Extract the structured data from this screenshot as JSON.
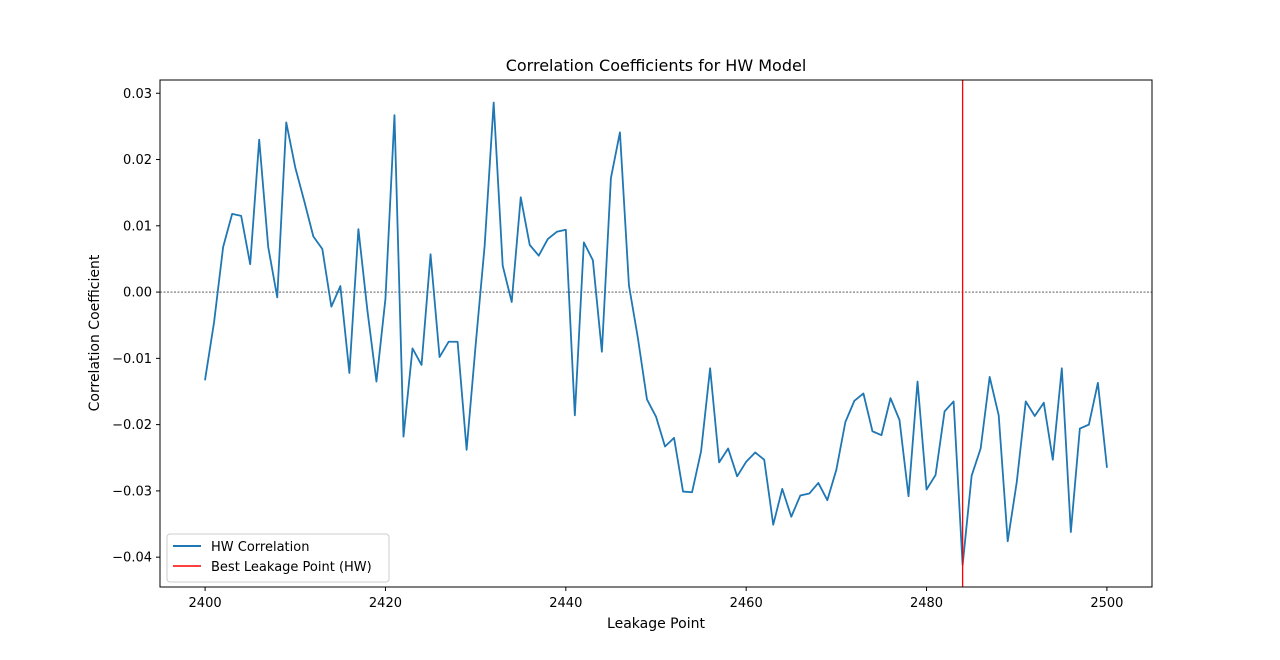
{
  "chart_data": {
    "type": "line",
    "title": "Correlation Coefficients for HW Model",
    "xlabel": "Leakage Point",
    "ylabel": "Correlation Coefficient",
    "xlim": [
      2395,
      2505
    ],
    "ylim": [
      -0.0445,
      0.032
    ],
    "xticks": [
      2400,
      2420,
      2440,
      2460,
      2480,
      2500
    ],
    "xtick_labels": [
      "2400",
      "2420",
      "2440",
      "2460",
      "2480",
      "2500"
    ],
    "yticks": [
      -0.04,
      -0.03,
      -0.02,
      -0.01,
      0.0,
      0.01,
      0.02,
      0.03
    ],
    "ytick_labels": [
      "−0.04",
      "−0.03",
      "−0.02",
      "−0.01",
      "0.00",
      "0.01",
      "0.02",
      "0.03"
    ],
    "grid": false,
    "legend_position": "lower-left",
    "zero_line": 0,
    "best_point": 2484,
    "colors": {
      "series": "#1f77b4",
      "best": "#ff0000",
      "zero": "#000000"
    },
    "series": [
      {
        "name": "HW Correlation",
        "x_start": 2400,
        "x_step": 1,
        "values": [
          -0.0132,
          -0.0045,
          0.0068,
          0.0118,
          0.0115,
          0.0042,
          0.023,
          0.0068,
          -0.0008,
          0.0256,
          0.0188,
          0.0137,
          0.0084,
          0.0065,
          -0.0022,
          0.0009,
          -0.0122,
          0.0095,
          -0.0028,
          -0.0135,
          -0.001,
          0.0267,
          -0.0218,
          -0.0085,
          -0.011,
          0.0057,
          -0.0098,
          -0.0075,
          -0.0075,
          -0.0238,
          -0.008,
          0.007,
          0.0286,
          0.004,
          -0.0015,
          0.0143,
          0.0071,
          0.0055,
          0.008,
          0.0091,
          0.0094,
          -0.0186,
          0.0075,
          0.0048,
          -0.009,
          0.0172,
          0.0241,
          0.001,
          -0.007,
          -0.0162,
          -0.0188,
          -0.0233,
          -0.022,
          -0.0301,
          -0.0302,
          -0.024,
          -0.0115,
          -0.0257,
          -0.0236,
          -0.0278,
          -0.0256,
          -0.0242,
          -0.0253,
          -0.0351,
          -0.0297,
          -0.0339,
          -0.0307,
          -0.0304,
          -0.0288,
          -0.0314,
          -0.0268,
          -0.0196,
          -0.0164,
          -0.0153,
          -0.021,
          -0.0216,
          -0.016,
          -0.0193,
          -0.0308,
          -0.0135,
          -0.0298,
          -0.0276,
          -0.018,
          -0.0165,
          -0.0412,
          -0.0277,
          -0.0236,
          -0.0128,
          -0.0186,
          -0.0376,
          -0.0287,
          -0.0165,
          -0.0187,
          -0.0167,
          -0.0253,
          -0.0115,
          -0.0362,
          -0.0206,
          -0.02,
          -0.0137,
          -0.0264
        ]
      }
    ],
    "legend": {
      "entries": [
        "HW Correlation",
        "Best Leakage Point (HW)"
      ]
    }
  }
}
